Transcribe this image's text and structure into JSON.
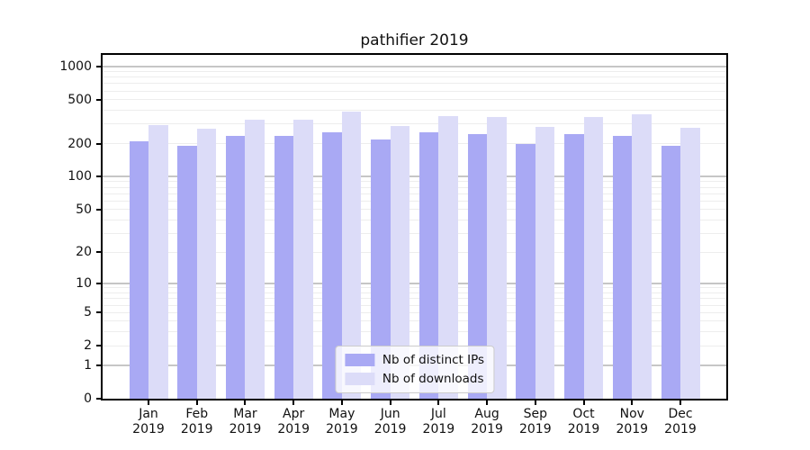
{
  "chart_data": {
    "type": "bar",
    "title": "pathifier 2019",
    "categories": [
      "Jan",
      "Feb",
      "Mar",
      "Apr",
      "May",
      "Jun",
      "Jul",
      "Aug",
      "Sep",
      "Oct",
      "Nov",
      "Dec"
    ],
    "year_label": "2019",
    "series": [
      {
        "name": "Nb of distinct IPs",
        "color": "#a9a9f4",
        "values": [
          209,
          191,
          234,
          234,
          251,
          219,
          251,
          245,
          197,
          242,
          236,
          190
        ]
      },
      {
        "name": "Nb of downloads",
        "color": "#dcdcf8",
        "values": [
          296,
          272,
          329,
          331,
          387,
          287,
          352,
          350,
          283,
          346,
          371,
          276
        ]
      }
    ],
    "xlabel": "",
    "ylabel": "",
    "yscale": "log1p",
    "ylim": [
      0,
      1270
    ],
    "yticks": [
      0,
      1,
      2,
      5,
      10,
      20,
      50,
      100,
      200,
      500,
      1000
    ],
    "grid": "horizontal, minor log subdivisions + decade majors",
    "legend_position": "lower center",
    "colors": {
      "major_grid": "#c6c6c6",
      "minor_grid": "#ededed",
      "axis": "#000000",
      "text": "#111111",
      "background": "#ffffff"
    }
  }
}
